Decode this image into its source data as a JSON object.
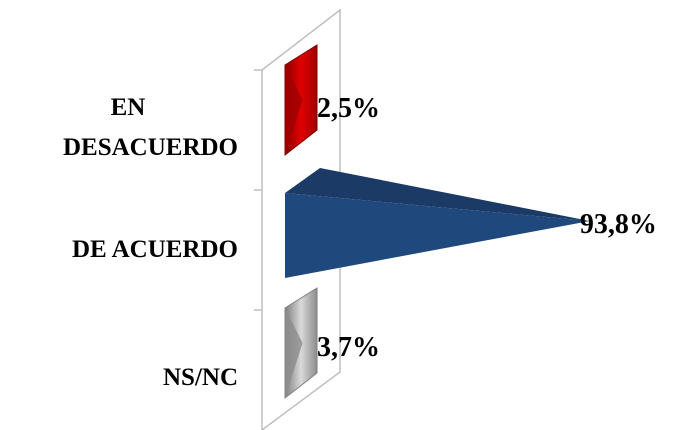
{
  "chart_data": {
    "type": "bar",
    "orientation": "horizontal",
    "style": "3d-pyramid",
    "categories": [
      [
        "EN",
        "DESACUERDO"
      ],
      [
        "DE ACUERDO"
      ],
      [
        "NS/NC"
      ]
    ],
    "values": [
      2.5,
      93.8,
      3.7
    ],
    "value_labels": [
      "2,5%",
      "93,8%",
      "3,7%"
    ],
    "unit": "%",
    "colors": [
      "#c00000",
      "#1f497d",
      "#a6a6a6"
    ],
    "xlim": [
      0,
      100
    ],
    "grid": false,
    "legend": "none",
    "title": "",
    "xlabel": "",
    "ylabel": ""
  }
}
